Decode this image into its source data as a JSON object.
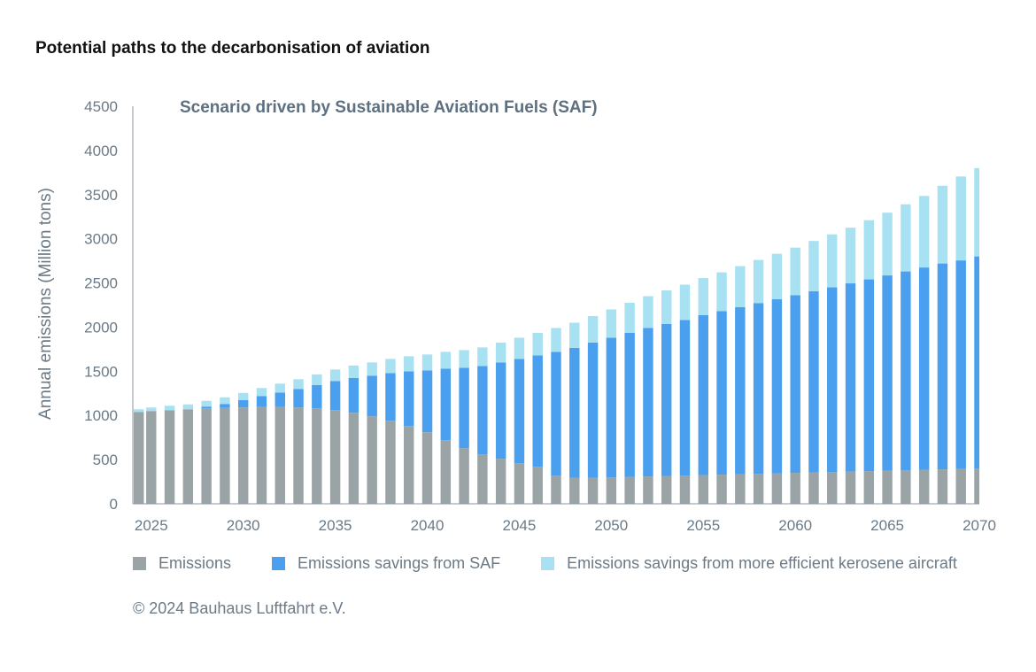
{
  "title": "Potential paths to the decarbonisation of aviation",
  "copyright": "© 2024 Bauhaus Luftfahrt e.V.",
  "colors": {
    "emissions": "#9aa3a6",
    "saf": "#4aa0ee",
    "efficient": "#a8e1f2",
    "axis_text": "#6b7a86",
    "subtitle": "#5e7080"
  },
  "legend": [
    {
      "label": "Emissions",
      "color": "#9aa3a6"
    },
    {
      "label": "Emissions savings from SAF",
      "color": "#4aa0ee"
    },
    {
      "label": "Emissions savings from more efficient kerosene aircraft",
      "color": "#a8e1f2"
    }
  ],
  "chart_data": {
    "type": "bar",
    "stacked": true,
    "title": "Scenario driven by Sustainable Aviation Fuels (SAF)",
    "xlabel": "",
    "ylabel": "Annual emissions (Million tons)",
    "xlim": [
      2024,
      2070
    ],
    "ylim": [
      0,
      4500
    ],
    "y_ticks": [
      0,
      500,
      1000,
      1500,
      2000,
      2500,
      3000,
      3500,
      4000,
      4500
    ],
    "x_ticks": [
      2025,
      2030,
      2035,
      2040,
      2045,
      2050,
      2055,
      2060,
      2065,
      2070
    ],
    "grid": false,
    "legend_position": "bottom",
    "categories": [
      2024,
      2025,
      2026,
      2027,
      2028,
      2029,
      2030,
      2031,
      2032,
      2033,
      2034,
      2035,
      2036,
      2037,
      2038,
      2039,
      2040,
      2041,
      2042,
      2043,
      2044,
      2045,
      2046,
      2047,
      2048,
      2049,
      2050,
      2051,
      2052,
      2053,
      2054,
      2055,
      2056,
      2057,
      2058,
      2059,
      2060,
      2061,
      2062,
      2063,
      2064,
      2065,
      2066,
      2067,
      2068,
      2069,
      2070
    ],
    "series": [
      {
        "name": "Emissions",
        "values": [
          1040,
          1050,
          1060,
          1070,
          1080,
          1085,
          1090,
          1095,
          1095,
          1090,
          1080,
          1060,
          1030,
          990,
          940,
          880,
          810,
          720,
          630,
          560,
          510,
          460,
          420,
          320,
          295,
          295,
          300,
          305,
          310,
          315,
          320,
          325,
          330,
          335,
          340,
          345,
          350,
          355,
          360,
          365,
          370,
          375,
          380,
          385,
          390,
          395,
          400
        ]
      },
      {
        "name": "Emissions savings from SAF",
        "values": [
          0,
          0,
          0,
          0,
          20,
          45,
          85,
          125,
          165,
          210,
          265,
          330,
          395,
          460,
          540,
          620,
          700,
          810,
          910,
          1000,
          1090,
          1180,
          1260,
          1400,
          1470,
          1530,
          1580,
          1630,
          1680,
          1720,
          1760,
          1810,
          1850,
          1890,
          1930,
          1970,
          2010,
          2050,
          2090,
          2130,
          2170,
          2210,
          2250,
          2290,
          2330,
          2360,
          2400
        ]
      },
      {
        "name": "Emissions savings from more efficient kerosene aircraft",
        "values": [
          30,
          40,
          50,
          55,
          65,
          75,
          80,
          90,
          100,
          110,
          120,
          130,
          140,
          150,
          160,
          170,
          180,
          190,
          200,
          210,
          225,
          240,
          255,
          270,
          285,
          300,
          320,
          340,
          360,
          380,
          400,
          420,
          440,
          465,
          490,
          515,
          540,
          570,
          600,
          630,
          670,
          710,
          760,
          810,
          880,
          950,
          1000
        ]
      }
    ]
  }
}
